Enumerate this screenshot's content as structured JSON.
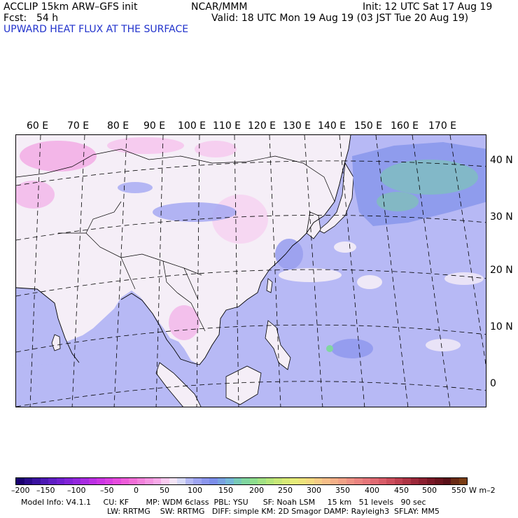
{
  "header": {
    "model": "ACCLIP 15km ARW–GFS init",
    "center": "NCAR/MMM",
    "init": "Init: 12 UTC Sat 17 Aug 19",
    "fcst_label": "Fcst:",
    "fcst_value": "54 h",
    "valid": "Valid: 18 UTC Mon 19 Aug 19 (03 JST Tue 20 Aug 19)"
  },
  "field_title": "UPWARD HEAT FLUX AT THE SURFACE",
  "longitude_labels": [
    "60 E",
    "70 E",
    "80 E",
    "90 E",
    "100 E",
    "110 E",
    "120 E",
    "130 E",
    "140 E",
    "150 E",
    "160 E",
    "170 E"
  ],
  "latitude_labels": [
    "40 N",
    "30 N",
    "20 N",
    "10 N",
    "0"
  ],
  "colorbar": {
    "tick_labels": [
      "–200",
      "–150",
      "–100",
      "–50",
      "0",
      "50",
      "100",
      "150",
      "200",
      "250",
      "300",
      "350",
      "400",
      "450",
      "500",
      "550"
    ],
    "unit": "W m–2",
    "colors": [
      "#1a0070",
      "#2a0a8a",
      "#3a12a0",
      "#4c18b4",
      "#5e1ec4",
      "#7020d0",
      "#8224d8",
      "#9428de",
      "#a82ce2",
      "#bc30e4",
      "#cc36e4",
      "#da40e2",
      "#e64cde",
      "#ee5cda",
      "#f26ed8",
      "#f482dc",
      "#f696e2",
      "#f8aae8",
      "#facaf0",
      "#f4e4f6",
      "#d8daf8",
      "#b4b8f4",
      "#9ea4f2",
      "#8c96ee",
      "#7c8eea",
      "#78a2e2",
      "#76b8d8",
      "#78cab8",
      "#80d6a0",
      "#8ede8e",
      "#a2e284",
      "#b6e67c",
      "#c8e878",
      "#d8ea76",
      "#e6ec7a",
      "#eee47c",
      "#f4da80",
      "#f6cc86",
      "#f6be88",
      "#f4b088",
      "#f2a286",
      "#ee9284",
      "#ea8480",
      "#e6767a",
      "#e06a72",
      "#d85c68",
      "#cc4e5c",
      "#be4050",
      "#ae3444",
      "#9c283a",
      "#8c2030",
      "#7a1826",
      "#6a141e",
      "#5a1018",
      "#6a2a14",
      "#7a3c14"
    ]
  },
  "model_info": {
    "line1": "Model Info: V4.1.1     CU: KF       MP: WDM 6class  PBL: YSU      SF: Noah LSM     15 km   51 levels   90 sec",
    "line2": "LW: RRTMG    SW: RRTMG   DIFF: simple KM: 2D Smagor DAMP: Rayleigh3  SFLAY: MM5"
  }
}
